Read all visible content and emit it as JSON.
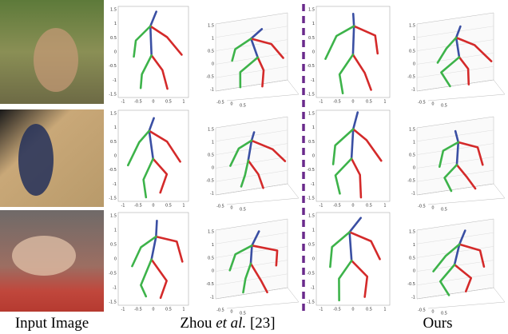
{
  "captions": {
    "input": "Input Image",
    "zhou": {
      "prefix": "Zhou ",
      "italic": "et al.",
      "suffix": " [23]"
    },
    "ours": "Ours"
  },
  "axis_labels": {
    "y2d": [
      "1.5",
      "1",
      "0.5",
      "0",
      "-0.5",
      "-1",
      "-1.5"
    ],
    "x2d": [
      "-1",
      "-0.5",
      "0",
      "0.5",
      "1"
    ],
    "z3d": [
      "1.5",
      "1",
      "0.5",
      "0",
      "-0.5",
      "-1"
    ],
    "x3d": [
      "-0.5",
      "0",
      "0.5"
    ]
  }
}
